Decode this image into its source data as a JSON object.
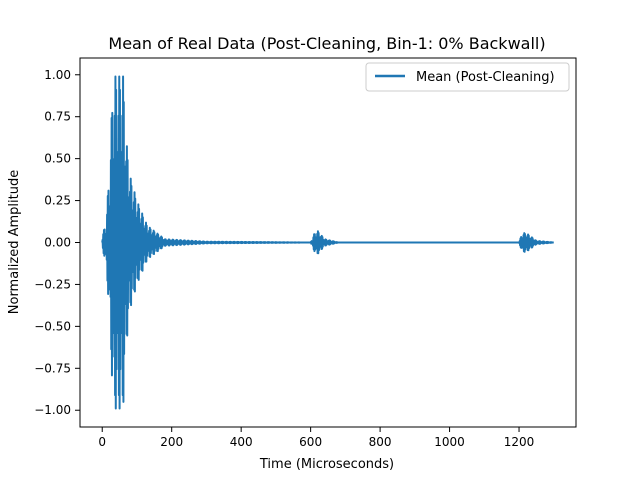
{
  "chart_data": {
    "type": "line",
    "title": "Mean of Real Data (Post-Cleaning, Bin-1: 0% Backwall)",
    "xlabel": "Time (Microseconds)",
    "ylabel": "Normalized Amplitude",
    "xlim": [
      -64,
      1364
    ],
    "ylim": [
      -1.1,
      1.1
    ],
    "x_ticks": [
      0,
      200,
      400,
      600,
      800,
      1000,
      1200
    ],
    "y_ticks": [
      -1.0,
      -0.75,
      -0.5,
      -0.25,
      0.0,
      0.25,
      0.5,
      0.75,
      1.0
    ],
    "x_tick_labels": [
      "0",
      "200",
      "400",
      "600",
      "800",
      "1000",
      "1200"
    ],
    "y_tick_labels": [
      "−1.00",
      "−0.75",
      "−0.50",
      "−0.25",
      "0.00",
      "0.25",
      "0.50",
      "0.75",
      "1.00"
    ],
    "grid": false,
    "legend_position": "top-right",
    "colors": {
      "series": "#1f77b4"
    },
    "series": [
      {
        "name": "Mean (Post-Cleaning)",
        "x_range": [
          0,
          1300
        ],
        "sample_step": 1.0,
        "description_of_shape": "oscillating signal",
        "envelope_points": [
          [
            0,
            0.05
          ],
          [
            10,
            0.1
          ],
          [
            20,
            0.4
          ],
          [
            30,
            0.9
          ],
          [
            35,
            1.0
          ],
          [
            60,
            1.0
          ],
          [
            70,
            0.6
          ],
          [
            80,
            0.4
          ],
          [
            100,
            0.25
          ],
          [
            130,
            0.1
          ],
          [
            180,
            0.02
          ],
          [
            300,
            0.005
          ],
          [
            600,
            0.0
          ],
          [
            610,
            0.05
          ],
          [
            620,
            0.07
          ],
          [
            640,
            0.02
          ],
          [
            680,
            0.0
          ],
          [
            1200,
            0.0
          ],
          [
            1210,
            0.06
          ],
          [
            1225,
            0.05
          ],
          [
            1250,
            0.01
          ],
          [
            1300,
            0.0
          ]
        ]
      }
    ]
  }
}
